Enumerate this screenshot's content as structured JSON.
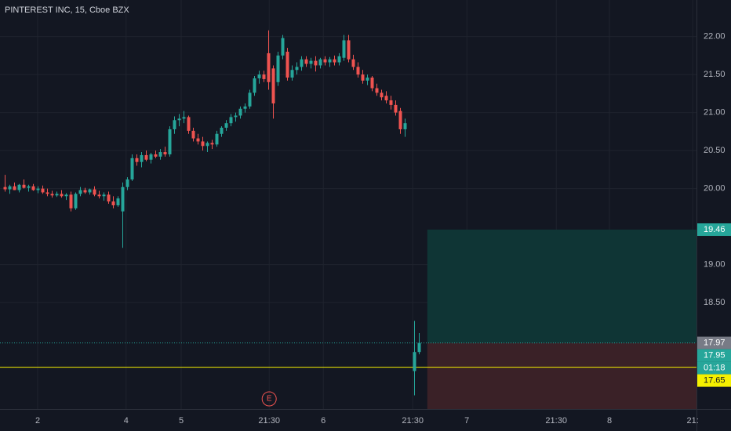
{
  "chart_data": {
    "type": "candlestick",
    "title": "PINTEREST INC, 15, Cboe BZX",
    "x": [
      0,
      1,
      2,
      3,
      4,
      5,
      6,
      7,
      8,
      9,
      10,
      11,
      12,
      13,
      14,
      15,
      16,
      17,
      18,
      19,
      20,
      21,
      22,
      23,
      24,
      25,
      26,
      27,
      28,
      29,
      30,
      31,
      32,
      33,
      34,
      35,
      36,
      37,
      38,
      39,
      40,
      41,
      42,
      43,
      44,
      45,
      46,
      47,
      48,
      49,
      50,
      51,
      52,
      53,
      54,
      55,
      56,
      57,
      58,
      59,
      60,
      61,
      62,
      63,
      64,
      65,
      66,
      67,
      68,
      69,
      70,
      71,
      72,
      73,
      74,
      75,
      76,
      77,
      78,
      79,
      80,
      81,
      82,
      83,
      84,
      85,
      87,
      88
    ],
    "open": [
      20.02,
      19.99,
      20.03,
      19.98,
      20.05,
      20.01,
      20.03,
      19.98,
      20.0,
      19.95,
      19.93,
      19.91,
      19.93,
      19.9,
      19.92,
      19.74,
      19.93,
      19.98,
      19.95,
      19.99,
      19.92,
      19.9,
      19.92,
      19.83,
      19.78,
      19.7,
      20.02,
      20.12,
      20.4,
      20.35,
      20.44,
      20.38,
      20.45,
      20.42,
      20.48,
      20.45,
      20.78,
      20.9,
      20.92,
      20.94,
      20.76,
      20.66,
      20.62,
      20.56,
      20.6,
      20.58,
      20.72,
      20.8,
      20.86,
      20.94,
      20.96,
      21.05,
      21.08,
      21.26,
      21.45,
      21.5,
      21.78,
      21.58,
      21.4,
      21.75,
      21.8,
      21.46,
      21.56,
      21.6,
      21.7,
      21.64,
      21.68,
      21.62,
      21.7,
      21.66,
      21.7,
      21.66,
      21.72,
      21.95,
      21.7,
      21.6,
      21.5,
      21.42,
      21.46,
      21.32,
      21.26,
      21.22,
      21.16,
      21.1,
      21.02,
      20.78,
      17.6,
      17.85
    ],
    "high": [
      20.18,
      20.05,
      20.08,
      20.06,
      20.12,
      20.05,
      20.06,
      20.03,
      20.04,
      20.0,
      19.97,
      19.96,
      19.98,
      19.94,
      19.96,
      19.95,
      20.02,
      20.01,
      20.0,
      20.03,
      19.97,
      19.95,
      19.96,
      19.9,
      19.9,
      20.08,
      20.15,
      20.45,
      20.45,
      20.48,
      20.5,
      20.47,
      20.5,
      20.52,
      20.55,
      20.82,
      20.95,
      20.98,
      21.02,
      20.96,
      20.8,
      20.72,
      20.68,
      20.62,
      20.64,
      20.76,
      20.82,
      20.9,
      20.98,
      21.0,
      21.08,
      21.12,
      21.3,
      21.48,
      21.55,
      21.55,
      22.08,
      21.62,
      21.8,
      22.02,
      21.85,
      21.62,
      21.66,
      21.74,
      21.74,
      21.72,
      21.74,
      21.72,
      21.74,
      21.73,
      21.75,
      21.78,
      22.02,
      22.02,
      21.76,
      21.66,
      21.56,
      21.5,
      21.48,
      21.38,
      21.3,
      21.28,
      21.22,
      21.16,
      21.06,
      20.92,
      18.26,
      18.1
    ],
    "low": [
      19.96,
      19.93,
      19.98,
      19.95,
      20.0,
      19.96,
      19.97,
      19.94,
      19.93,
      19.9,
      19.88,
      19.89,
      19.88,
      19.85,
      19.7,
      19.72,
      19.9,
      19.93,
      19.92,
      19.9,
      19.87,
      19.84,
      19.8,
      19.74,
      19.76,
      19.22,
      19.98,
      20.1,
      20.3,
      20.28,
      20.36,
      20.33,
      20.4,
      20.38,
      20.42,
      20.42,
      20.72,
      20.82,
      20.86,
      20.72,
      20.62,
      20.58,
      20.5,
      20.48,
      20.52,
      20.55,
      20.68,
      20.76,
      20.82,
      20.88,
      20.92,
      21.0,
      21.05,
      21.22,
      21.38,
      21.4,
      21.3,
      20.92,
      21.35,
      21.7,
      21.42,
      21.42,
      21.5,
      21.55,
      21.6,
      21.58,
      21.54,
      21.58,
      21.62,
      21.6,
      21.62,
      21.62,
      21.68,
      21.66,
      21.56,
      21.46,
      21.38,
      21.36,
      21.28,
      21.22,
      21.16,
      21.12,
      21.04,
      20.96,
      20.72,
      20.68,
      17.28,
      17.82
    ],
    "close": [
      19.99,
      20.03,
      19.98,
      20.05,
      20.01,
      20.03,
      19.98,
      20.0,
      19.95,
      19.93,
      19.91,
      19.93,
      19.9,
      19.92,
      19.74,
      19.93,
      19.98,
      19.95,
      19.99,
      19.92,
      19.9,
      19.92,
      19.83,
      19.78,
      19.87,
      20.02,
      20.12,
      20.4,
      20.35,
      20.44,
      20.38,
      20.45,
      20.42,
      20.48,
      20.45,
      20.78,
      20.9,
      20.92,
      20.94,
      20.76,
      20.66,
      20.62,
      20.56,
      20.6,
      20.58,
      20.72,
      20.8,
      20.86,
      20.94,
      20.96,
      21.05,
      21.08,
      21.26,
      21.45,
      21.5,
      21.44,
      21.4,
      21.12,
      21.75,
      21.98,
      21.46,
      21.56,
      21.6,
      21.7,
      21.64,
      21.68,
      21.62,
      21.7,
      21.66,
      21.7,
      21.66,
      21.74,
      21.95,
      21.7,
      21.6,
      21.5,
      21.42,
      21.46,
      21.32,
      21.26,
      21.2,
      21.16,
      21.1,
      21.0,
      20.78,
      20.86,
      17.85,
      17.97
    ],
    "up_color": "#26a69a",
    "down_color": "#ef5350",
    "xlim": [
      -1,
      147
    ],
    "ylim": [
      17.1,
      22.48
    ],
    "xticks": [
      {
        "value": 7,
        "label": "2"
      },
      {
        "value": 25.8,
        "label": "4"
      },
      {
        "value": 37.5,
        "label": "5"
      },
      {
        "value": 56.2,
        "label": "21:30"
      },
      {
        "value": 67.7,
        "label": "6"
      },
      {
        "value": 86.7,
        "label": "21:30"
      },
      {
        "value": 98.2,
        "label": "7"
      },
      {
        "value": 117.2,
        "label": "21:30"
      },
      {
        "value": 128.5,
        "label": "8"
      },
      {
        "value": 146.2,
        "label": "21:"
      }
    ],
    "yticks": [
      {
        "value": 18.5,
        "label": "18.50"
      },
      {
        "value": 19,
        "label": "19.00"
      },
      {
        "value": 20,
        "label": "20.00"
      },
      {
        "value": 20.5,
        "label": "20.50"
      },
      {
        "value": 21,
        "label": "21.00"
      },
      {
        "value": 21.5,
        "label": "21.50"
      },
      {
        "value": 22,
        "label": "22.00"
      }
    ],
    "grid": true,
    "position": {
      "target": 19.46,
      "entry": 17.97,
      "start_x": 89.8
    },
    "last_price": 17.95,
    "countdown": "01:18",
    "hline": {
      "value": 17.65,
      "color": "#f5f000"
    },
    "event_marker": {
      "x": 56.2,
      "label": "E"
    }
  }
}
